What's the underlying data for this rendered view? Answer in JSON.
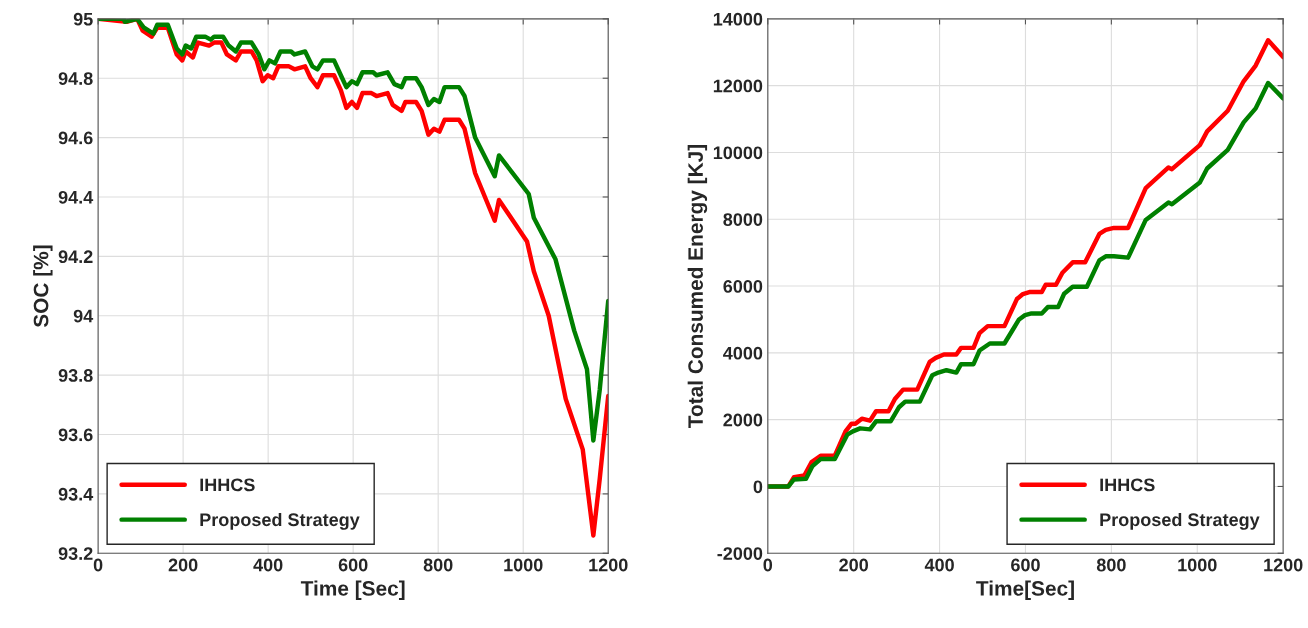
{
  "chart_data": [
    {
      "type": "line",
      "xlabel": "Time [Sec]",
      "ylabel": "SOC [%]",
      "xlim": [
        0,
        1200
      ],
      "ylim": [
        93.2,
        95
      ],
      "xticks": [
        0,
        200,
        400,
        600,
        800,
        1000,
        1200
      ],
      "yticks": [
        93.2,
        93.4,
        93.6,
        93.8,
        94,
        94.2,
        94.4,
        94.6,
        94.8,
        95
      ],
      "grid": true,
      "legend": "bottom left",
      "line_style": "solid",
      "marker": "none",
      "series": [
        {
          "name": "IHHCS",
          "color": "#ff0000",
          "x": [
            0,
            67,
            92,
            105,
            126,
            139,
            164,
            185,
            198,
            206,
            223,
            235,
            261,
            273,
            290,
            303,
            324,
            336,
            361,
            373,
            387,
            399,
            412,
            424,
            449,
            462,
            487,
            500,
            516,
            529,
            555,
            571,
            584,
            597,
            609,
            622,
            643,
            655,
            681,
            693,
            714,
            723,
            748,
            761,
            777,
            790,
            803,
            815,
            849,
            862,
            887,
            933,
            943,
            1009,
            1025,
            1060,
            1100,
            1140,
            1165,
            1180,
            1200
          ],
          "values": [
            95,
            94.99,
            95,
            94.96,
            94.94,
            94.97,
            94.97,
            94.88,
            94.86,
            94.89,
            94.87,
            94.92,
            94.91,
            94.92,
            94.92,
            94.88,
            94.86,
            94.89,
            94.89,
            94.86,
            94.79,
            94.81,
            94.8,
            94.84,
            94.84,
            94.83,
            94.84,
            94.8,
            94.77,
            94.81,
            94.81,
            94.76,
            94.7,
            94.72,
            94.7,
            94.75,
            94.75,
            94.74,
            94.75,
            94.71,
            94.69,
            94.72,
            94.72,
            94.69,
            94.61,
            94.63,
            94.62,
            94.66,
            94.66,
            94.63,
            94.48,
            94.32,
            94.39,
            94.25,
            94.15,
            94.0,
            93.72,
            93.55,
            93.26,
            93.45,
            93.73
          ]
        },
        {
          "name": "Proposed Strategy",
          "color": "#008000",
          "x": [
            0,
            60,
            63,
            92,
            108,
            130,
            139,
            164,
            185,
            198,
            206,
            219,
            231,
            252,
            265,
            273,
            294,
            307,
            324,
            336,
            361,
            378,
            391,
            403,
            416,
            429,
            454,
            462,
            487,
            504,
            516,
            529,
            555,
            571,
            584,
            597,
            609,
            622,
            647,
            655,
            681,
            697,
            714,
            723,
            748,
            761,
            777,
            790,
            803,
            815,
            849,
            862,
            887,
            933,
            943,
            1013,
            1025,
            1076,
            1120,
            1150,
            1165,
            1180,
            1200
          ],
          "values": [
            95,
            95,
            94.99,
            95,
            94.97,
            94.95,
            94.98,
            94.98,
            94.9,
            94.88,
            94.91,
            94.9,
            94.94,
            94.94,
            94.93,
            94.94,
            94.94,
            94.91,
            94.89,
            94.92,
            94.92,
            94.88,
            94.83,
            94.86,
            94.85,
            94.89,
            94.89,
            94.88,
            94.89,
            94.84,
            94.83,
            94.86,
            94.86,
            94.81,
            94.77,
            94.79,
            94.78,
            94.82,
            94.82,
            94.81,
            94.82,
            94.78,
            94.77,
            94.8,
            94.8,
            94.77,
            94.71,
            94.73,
            94.72,
            94.77,
            94.77,
            94.74,
            94.6,
            94.47,
            94.54,
            94.41,
            94.33,
            94.19,
            93.95,
            93.82,
            93.58,
            93.75,
            94.05
          ]
        }
      ]
    },
    {
      "type": "line",
      "xlabel": "Time[Sec]",
      "ylabel": "Total Consumed Energy [KJ]",
      "xlim": [
        0,
        1200
      ],
      "ylim": [
        -2000,
        14000
      ],
      "xticks": [
        0,
        200,
        400,
        600,
        800,
        1000,
        1200
      ],
      "yticks": [
        -2000,
        0,
        2000,
        4000,
        6000,
        8000,
        10000,
        12000,
        14000
      ],
      "grid": true,
      "legend": "bottom right",
      "line_style": "solid",
      "marker": "none",
      "series": [
        {
          "name": "IHHCS",
          "color": "#ff0000",
          "x": [
            0,
            48,
            61,
            85,
            102,
            123,
            156,
            181,
            195,
            204,
            219,
            238,
            252,
            281,
            296,
            315,
            348,
            377,
            391,
            410,
            439,
            450,
            479,
            493,
            512,
            551,
            580,
            594,
            609,
            638,
            647,
            671,
            686,
            710,
            739,
            772,
            787,
            806,
            839,
            880,
            933,
            941,
            1006,
            1023,
            1071,
            1108,
            1136,
            1165,
            1200
          ],
          "values": [
            0,
            0,
            280,
            330,
            730,
            920,
            920,
            1650,
            1880,
            1880,
            2030,
            1970,
            2250,
            2250,
            2620,
            2900,
            2900,
            3730,
            3850,
            3950,
            3950,
            4150,
            4150,
            4590,
            4800,
            4800,
            5610,
            5760,
            5820,
            5820,
            6040,
            6040,
            6400,
            6710,
            6710,
            7560,
            7680,
            7740,
            7740,
            8930,
            9550,
            9500,
            10220,
            10630,
            11250,
            12130,
            12600,
            13360,
            12860
          ]
        },
        {
          "name": "Proposed Strategy",
          "color": "#008000",
          "x": [
            0,
            48,
            61,
            89,
            104,
            123,
            156,
            185,
            198,
            215,
            238,
            252,
            286,
            306,
            320,
            354,
            383,
            397,
            416,
            439,
            450,
            479,
            493,
            517,
            551,
            585,
            599,
            614,
            638,
            652,
            676,
            690,
            710,
            743,
            772,
            787,
            806,
            839,
            880,
            933,
            941,
            1006,
            1023,
            1071,
            1108,
            1136,
            1165,
            1200
          ],
          "values": [
            0,
            0,
            210,
            230,
            610,
            820,
            820,
            1550,
            1650,
            1740,
            1710,
            1950,
            1950,
            2380,
            2540,
            2540,
            3330,
            3410,
            3480,
            3410,
            3660,
            3660,
            4070,
            4280,
            4280,
            5000,
            5130,
            5180,
            5180,
            5370,
            5370,
            5770,
            5980,
            5980,
            6770,
            6890,
            6890,
            6850,
            7980,
            8500,
            8450,
            9100,
            9520,
            10080,
            10900,
            11320,
            12080,
            11620
          ]
        }
      ]
    }
  ]
}
